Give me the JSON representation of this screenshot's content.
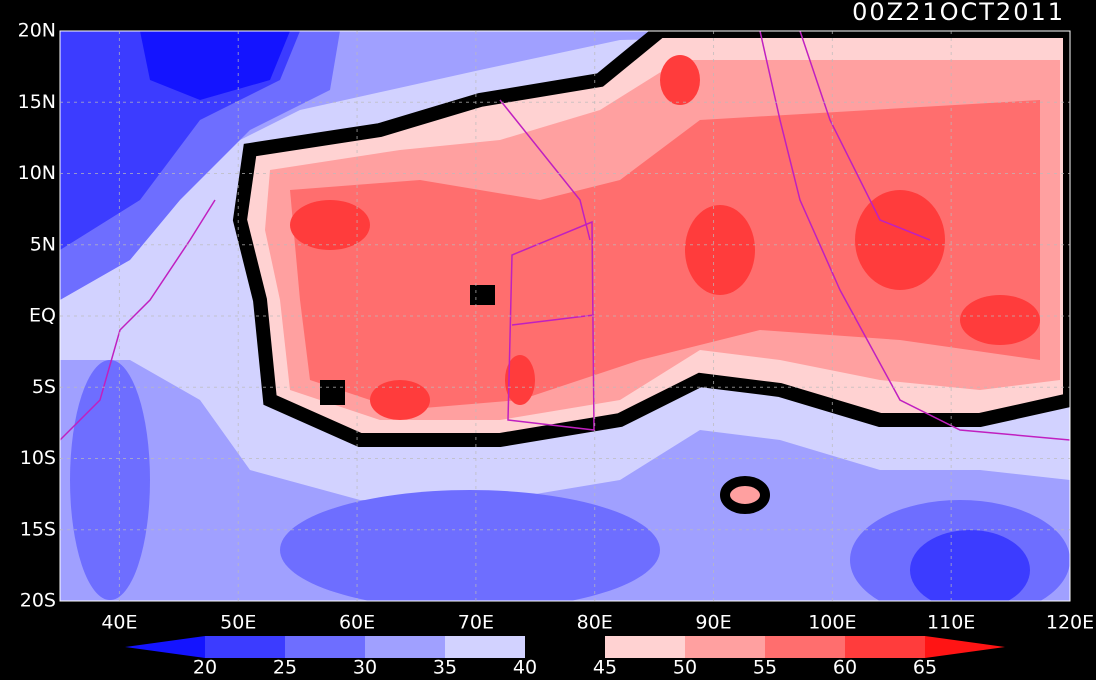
{
  "title": "00Z21OCT2011",
  "lat_labels": [
    "20N",
    "15N",
    "10N",
    "5N",
    "EQ",
    "5S",
    "10S",
    "15S",
    "20S"
  ],
  "lon_labels": [
    "40E",
    "50E",
    "60E",
    "70E",
    "80E",
    "90E",
    "100E",
    "110E",
    "120E"
  ],
  "colorbar": {
    "levels": [
      "20",
      "25",
      "30",
      "35",
      "40",
      "45",
      "50",
      "55",
      "60",
      "65"
    ],
    "colors": [
      "#1414ff",
      "#3c3cff",
      "#6e6eff",
      "#a0a0ff",
      "#d2d2ff",
      "#000000",
      "#ffd2d2",
      "#ffa0a0",
      "#ff6e6e",
      "#ff3c3c",
      "#ff1414"
    ]
  }
}
